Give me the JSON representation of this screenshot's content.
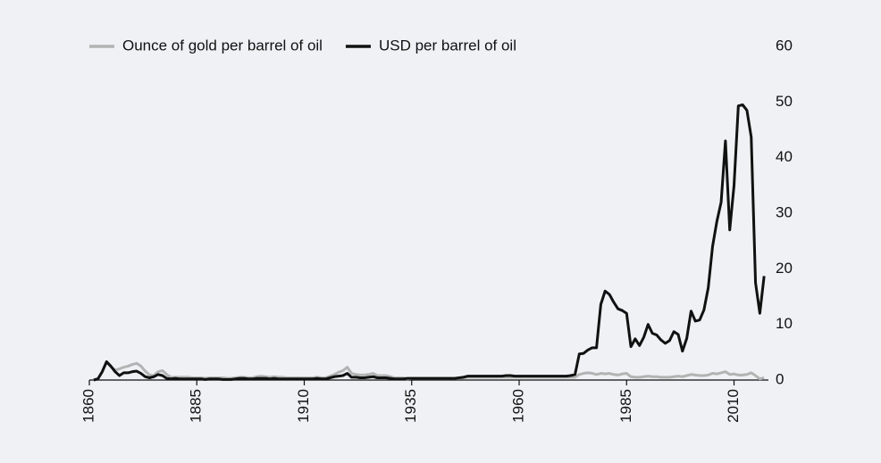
{
  "chart_data": {
    "type": "line",
    "x": [
      1861,
      1862,
      1863,
      1864,
      1865,
      1866,
      1867,
      1868,
      1869,
      1870,
      1871,
      1872,
      1873,
      1874,
      1875,
      1876,
      1877,
      1878,
      1879,
      1880,
      1881,
      1882,
      1883,
      1884,
      1885,
      1886,
      1887,
      1888,
      1889,
      1890,
      1891,
      1892,
      1893,
      1894,
      1895,
      1896,
      1897,
      1898,
      1899,
      1900,
      1901,
      1902,
      1903,
      1904,
      1905,
      1906,
      1907,
      1908,
      1909,
      1910,
      1911,
      1912,
      1913,
      1914,
      1915,
      1916,
      1917,
      1918,
      1919,
      1920,
      1921,
      1922,
      1923,
      1924,
      1925,
      1926,
      1927,
      1928,
      1929,
      1930,
      1931,
      1932,
      1933,
      1934,
      1935,
      1936,
      1937,
      1938,
      1939,
      1940,
      1941,
      1942,
      1943,
      1944,
      1945,
      1946,
      1947,
      1948,
      1949,
      1950,
      1951,
      1952,
      1953,
      1954,
      1955,
      1956,
      1957,
      1958,
      1959,
      1960,
      1961,
      1962,
      1963,
      1964,
      1965,
      1966,
      1967,
      1968,
      1969,
      1970,
      1971,
      1972,
      1973,
      1974,
      1975,
      1976,
      1977,
      1978,
      1979,
      1980,
      1981,
      1982,
      1983,
      1984,
      1985,
      1986,
      1987,
      1988,
      1989,
      1990,
      1991,
      1992,
      1993,
      1994,
      1995,
      1996,
      1997,
      1998,
      1999,
      2000,
      2001,
      2002,
      2003,
      2004,
      2005,
      2006,
      2007,
      2008,
      2009,
      2010,
      2011,
      2012,
      2013,
      2014,
      2015,
      2016,
      2017
    ],
    "series": [
      {
        "name": "Ounce of gold per barrel of oil",
        "color": "#b3b3b3",
        "values": [
          0,
          0.3,
          1.5,
          3.2,
          2.4,
          1.8,
          2.0,
          2.3,
          2.5,
          2.8,
          3.0,
          2.5,
          1.6,
          0.9,
          0.8,
          1.5,
          1.7,
          1.0,
          0.5,
          0.5,
          0.5,
          0.5,
          0.5,
          0.4,
          0.4,
          0.4,
          0.3,
          0.4,
          0.4,
          0.4,
          0.4,
          0.3,
          0.3,
          0.4,
          0.5,
          0.5,
          0.4,
          0.4,
          0.6,
          0.7,
          0.6,
          0.5,
          0.6,
          0.5,
          0.5,
          0.4,
          0.4,
          0.4,
          0.4,
          0.4,
          0.4,
          0.4,
          0.5,
          0.4,
          0.4,
          0.7,
          1.0,
          1.4,
          1.7,
          2.3,
          1.2,
          1.0,
          0.9,
          0.9,
          1.0,
          1.2,
          0.8,
          0.8,
          0.8,
          0.6,
          0.4,
          0.4,
          0.4,
          0.2,
          0.3,
          0.3,
          0.3,
          0.3,
          0.3,
          0.3,
          0.3,
          0.3,
          0.3,
          0.3,
          0.3,
          0.3,
          0.4,
          0.5,
          0.5,
          0.5,
          0.5,
          0.5,
          0.5,
          0.5,
          0.5,
          0.5,
          0.5,
          0.5,
          0.5,
          0.5,
          0.5,
          0.5,
          0.5,
          0.5,
          0.5,
          0.5,
          0.5,
          0.5,
          0.5,
          0.5,
          0.5,
          0.5,
          0.5,
          1.0,
          1.2,
          1.3,
          1.2,
          1.0,
          1.2,
          1.1,
          1.2,
          1.0,
          0.9,
          1.1,
          1.2,
          0.6,
          0.5,
          0.5,
          0.6,
          0.7,
          0.6,
          0.6,
          0.5,
          0.5,
          0.5,
          0.6,
          0.7,
          0.6,
          0.8,
          1.0,
          0.9,
          0.8,
          0.8,
          0.9,
          1.2,
          1.1,
          1.3,
          1.5,
          1.0,
          1.1,
          0.9,
          0.9,
          1.0,
          1.3,
          0.8,
          0.2,
          0.4
        ]
      },
      {
        "name": "USD per barrel of oil",
        "color": "#111111",
        "values": [
          0,
          0.2,
          1.5,
          3.3,
          2.5,
          1.5,
          0.8,
          1.3,
          1.3,
          1.5,
          1.6,
          1.2,
          0.6,
          0.4,
          0.6,
          1.0,
          0.8,
          0.3,
          0.2,
          0.3,
          0.2,
          0.2,
          0.2,
          0.2,
          0.2,
          0.2,
          0.1,
          0.2,
          0.2,
          0.2,
          0.1,
          0.1,
          0.1,
          0.2,
          0.3,
          0.3,
          0.2,
          0.2,
          0.3,
          0.3,
          0.3,
          0.2,
          0.3,
          0.2,
          0.2,
          0.2,
          0.2,
          0.2,
          0.2,
          0.2,
          0.2,
          0.2,
          0.3,
          0.2,
          0.2,
          0.4,
          0.6,
          0.7,
          0.8,
          1.2,
          0.5,
          0.5,
          0.4,
          0.4,
          0.5,
          0.6,
          0.4,
          0.4,
          0.4,
          0.3,
          0.2,
          0.2,
          0.2,
          0.3,
          0.3,
          0.3,
          0.3,
          0.3,
          0.3,
          0.3,
          0.3,
          0.3,
          0.3,
          0.3,
          0.3,
          0.4,
          0.5,
          0.7,
          0.7,
          0.7,
          0.7,
          0.7,
          0.7,
          0.7,
          0.7,
          0.7,
          0.8,
          0.8,
          0.7,
          0.7,
          0.7,
          0.7,
          0.7,
          0.7,
          0.7,
          0.7,
          0.7,
          0.7,
          0.7,
          0.7,
          0.7,
          0.8,
          1.0,
          4.7,
          4.8,
          5.4,
          5.8,
          5.8,
          13.6,
          16.0,
          15.4,
          14.0,
          12.8,
          12.5,
          12.0,
          6.0,
          7.4,
          6.2,
          7.7,
          10.0,
          8.4,
          8.1,
          7.2,
          6.6,
          7.1,
          8.7,
          8.2,
          5.2,
          7.5,
          12.4,
          10.6,
          10.8,
          12.6,
          16.6,
          24.0,
          28.5,
          32.0,
          43.0,
          27.0,
          35.0,
          49.3,
          49.5,
          48.5,
          43.7,
          17.5,
          12.0,
          18.7
        ]
      }
    ],
    "xlim": [
      1860,
      2018
    ],
    "xticks": [
      1860,
      1885,
      1910,
      1935,
      1960,
      1985,
      2010
    ],
    "ylim": [
      0,
      60
    ],
    "yticks": [
      0,
      10,
      20,
      30,
      40,
      50,
      60
    ],
    "y_axis_side": "right",
    "grid": false,
    "legend": "top-left"
  }
}
